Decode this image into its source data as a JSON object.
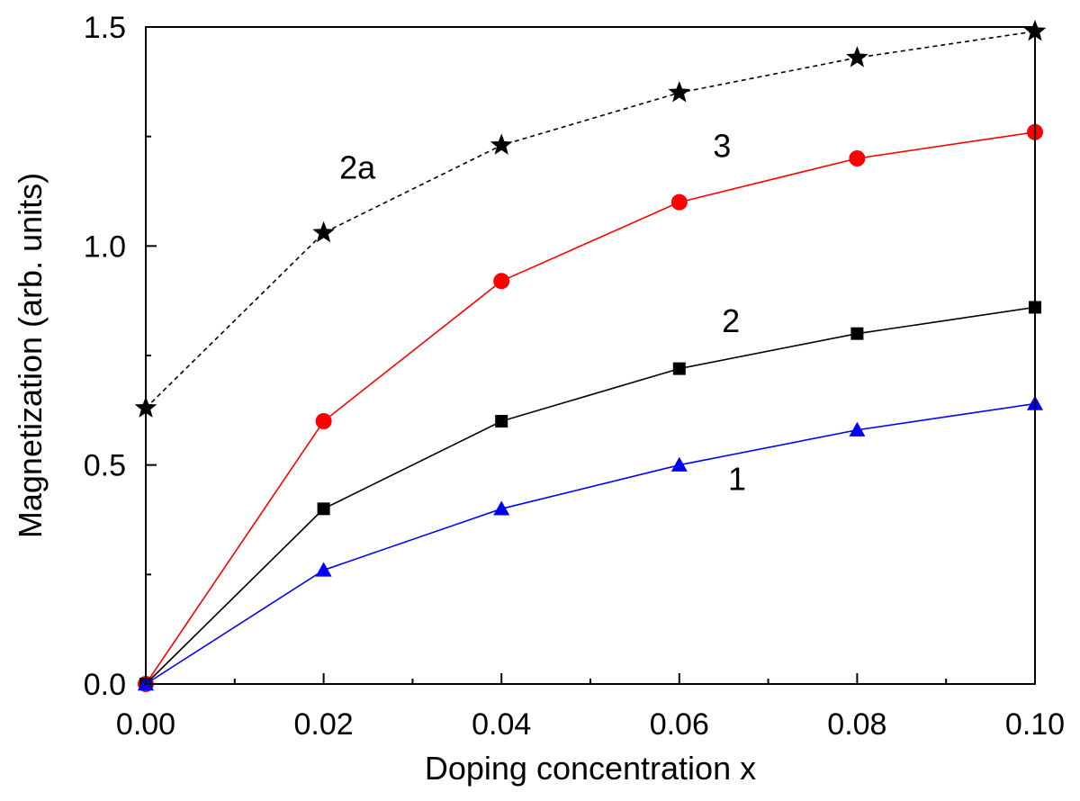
{
  "chart_data": {
    "type": "line",
    "title": "",
    "xlabel": "Doping concentration x",
    "ylabel": "Magnetization (arb. units)",
    "xlim": [
      0.0,
      0.1
    ],
    "ylim": [
      0.0,
      1.5
    ],
    "x_ticks": [
      "0.00",
      "0.02",
      "0.04",
      "0.06",
      "0.08",
      "0.10"
    ],
    "y_ticks": [
      "0.0",
      "0.5",
      "1.0",
      "1.5"
    ],
    "grid": false,
    "legend": "none",
    "x": [
      0.0,
      0.02,
      0.04,
      0.06,
      0.08,
      0.1
    ],
    "series": [
      {
        "label": "2a",
        "values": [
          0.63,
          1.03,
          1.23,
          1.35,
          1.43,
          1.49
        ],
        "color": "#000000",
        "marker": "star",
        "line": "dashed"
      },
      {
        "label": "3",
        "values": [
          0.0,
          0.6,
          0.92,
          1.1,
          1.2,
          1.26
        ],
        "color": "#ff0000",
        "marker": "circle",
        "line": "solid"
      },
      {
        "label": "2",
        "values": [
          0.0,
          0.4,
          0.6,
          0.72,
          0.8,
          0.86
        ],
        "color": "#000000",
        "marker": "square",
        "line": "solid"
      },
      {
        "label": "1",
        "values": [
          0.0,
          0.26,
          0.4,
          0.5,
          0.58,
          0.64
        ],
        "color": "#0000ff",
        "marker": "triangle",
        "line": "solid"
      }
    ]
  }
}
